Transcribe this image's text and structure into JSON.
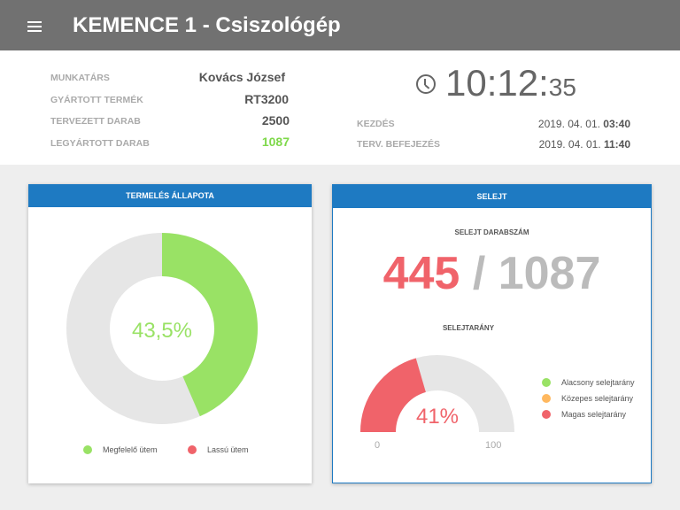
{
  "header": {
    "title": "KEMENCE 1 - Csiszológép",
    "menu_icon": "hamburger-menu-icon"
  },
  "info": {
    "rows": [
      {
        "label": "MUNKATÁRS",
        "value": "Kovács József"
      },
      {
        "label": "GYÁRTOTT TERMÉK",
        "value": "RT3200"
      },
      {
        "label": "TERVEZETT DARAB",
        "value": "2500"
      },
      {
        "label": "LEGYÁRTOTT DARAB",
        "value": "1087"
      }
    ],
    "time_main": "10:12:",
    "time_seconds": "35",
    "start_label": "KEZDÉS",
    "start_date": "2019. 04. 01. ",
    "start_time": "03:40",
    "end_label": "TERV. BEFEJEZÉS",
    "end_date": "2019. 04. 01. ",
    "end_time": "11:40"
  },
  "production": {
    "title": "TERMELÉS ÁLLAPOTA",
    "percent_label": "43,5%",
    "percent": 43.5,
    "legend": [
      {
        "label": "Megfelelő ütem",
        "color": "#99e265"
      },
      {
        "label": "Lassú ütem",
        "color": "#f0636a"
      }
    ]
  },
  "scrap": {
    "title": "SELEJT",
    "count_title": "SELEJT DARABSZÁM",
    "scrap_count": "445",
    "separator": "/",
    "total": "1087",
    "rate_title": "SELEJTARÁNY",
    "rate_label": "41%",
    "rate": 41,
    "min": "0",
    "max": "100",
    "legend": [
      {
        "label": "Alacsony selejtarány",
        "color": "#99e265"
      },
      {
        "label": "Közepes selejtarány",
        "color": "#ffb85f"
      },
      {
        "label": "Magas selejtarány",
        "color": "#f0636a"
      }
    ]
  },
  "colors": {
    "green": "#99e265",
    "red": "#f0636a",
    "blue": "#1e7ac2",
    "track": "#e6e6e6"
  }
}
